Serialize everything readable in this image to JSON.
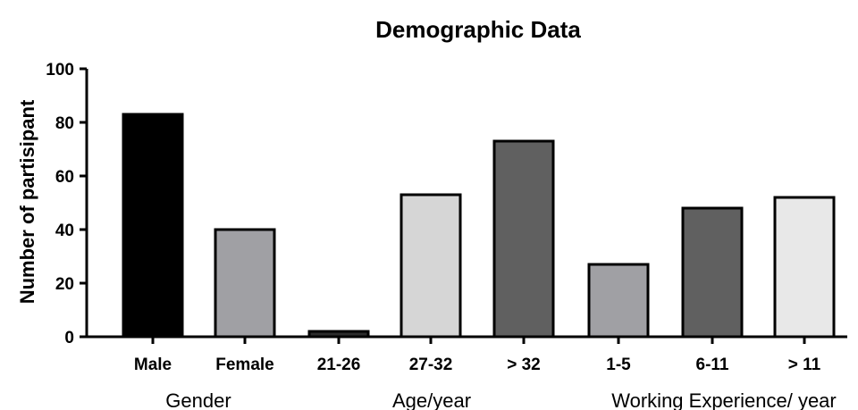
{
  "chart_data": {
    "type": "bar",
    "title": "Demographic Data",
    "xlabel": "",
    "ylabel": "Number of partisipant",
    "ylim": [
      0,
      100
    ],
    "yticks": [
      "0",
      "20",
      "40",
      "60",
      "80",
      "100"
    ],
    "grid": false,
    "legend": "none",
    "categories": [
      "Male",
      "Female",
      "21-26",
      "27-32",
      "> 32",
      "1-5",
      "6-11",
      "> 11"
    ],
    "values": [
      83,
      40,
      2,
      53,
      73,
      27,
      48,
      52
    ],
    "colors": [
      "#000000",
      "#a0a0a4",
      "#2c2c2c",
      "#d6d6d6",
      "#606060",
      "#a0a0a4",
      "#606060",
      "#e8e8e8"
    ],
    "groups": [
      {
        "label": "Gender",
        "categories": [
          "Male",
          "Female"
        ]
      },
      {
        "label": "Age/year",
        "categories": [
          "21-26",
          "27-32",
          "> 32"
        ]
      },
      {
        "label": "Working Experience/ year",
        "categories": [
          "1-5",
          "6-11",
          "> 11"
        ]
      }
    ]
  }
}
